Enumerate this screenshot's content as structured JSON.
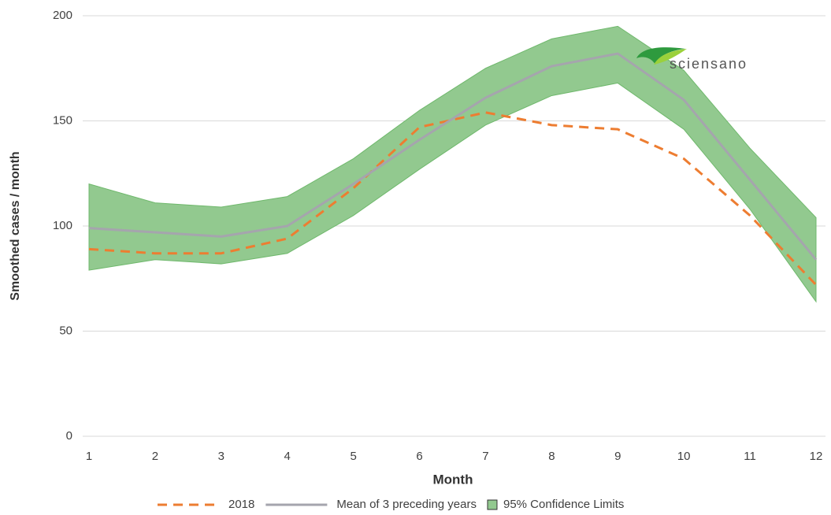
{
  "chart_data": {
    "type": "line",
    "x_label": "Month",
    "y_label": "Smoothed cases / month",
    "x": [
      1,
      2,
      3,
      4,
      5,
      6,
      7,
      8,
      9,
      10,
      11,
      12
    ],
    "xlim": [
      1,
      12
    ],
    "xticks": [
      1,
      2,
      3,
      4,
      5,
      6,
      7,
      8,
      9,
      10,
      11,
      12
    ],
    "ylim": [
      0,
      200
    ],
    "yticks": [
      0,
      50,
      100,
      150,
      200
    ],
    "grid": true,
    "band": {
      "name": "95% Confidence Limits",
      "color": "#92c98f",
      "edge": "#6fb86c",
      "upper": [
        120,
        111,
        109,
        114,
        132,
        155,
        175,
        189,
        195,
        174,
        137,
        104
      ],
      "lower": [
        79,
        84,
        82,
        87,
        105,
        127,
        148,
        162,
        168,
        146,
        108,
        64
      ]
    },
    "series": [
      {
        "name": "2018",
        "color": "#ed7d31",
        "dashed": true,
        "values": [
          89,
          87,
          87,
          94,
          118,
          147,
          154,
          148,
          146,
          132,
          105,
          72
        ]
      },
      {
        "name": "Mean of 3 preceding years",
        "color": "#a5a5ad",
        "dashed": false,
        "values": [
          99,
          97,
          95,
          100,
          120,
          141,
          161,
          176,
          182,
          160,
          122,
          84
        ]
      }
    ],
    "legend": "bottom"
  },
  "logo": "sciensano"
}
